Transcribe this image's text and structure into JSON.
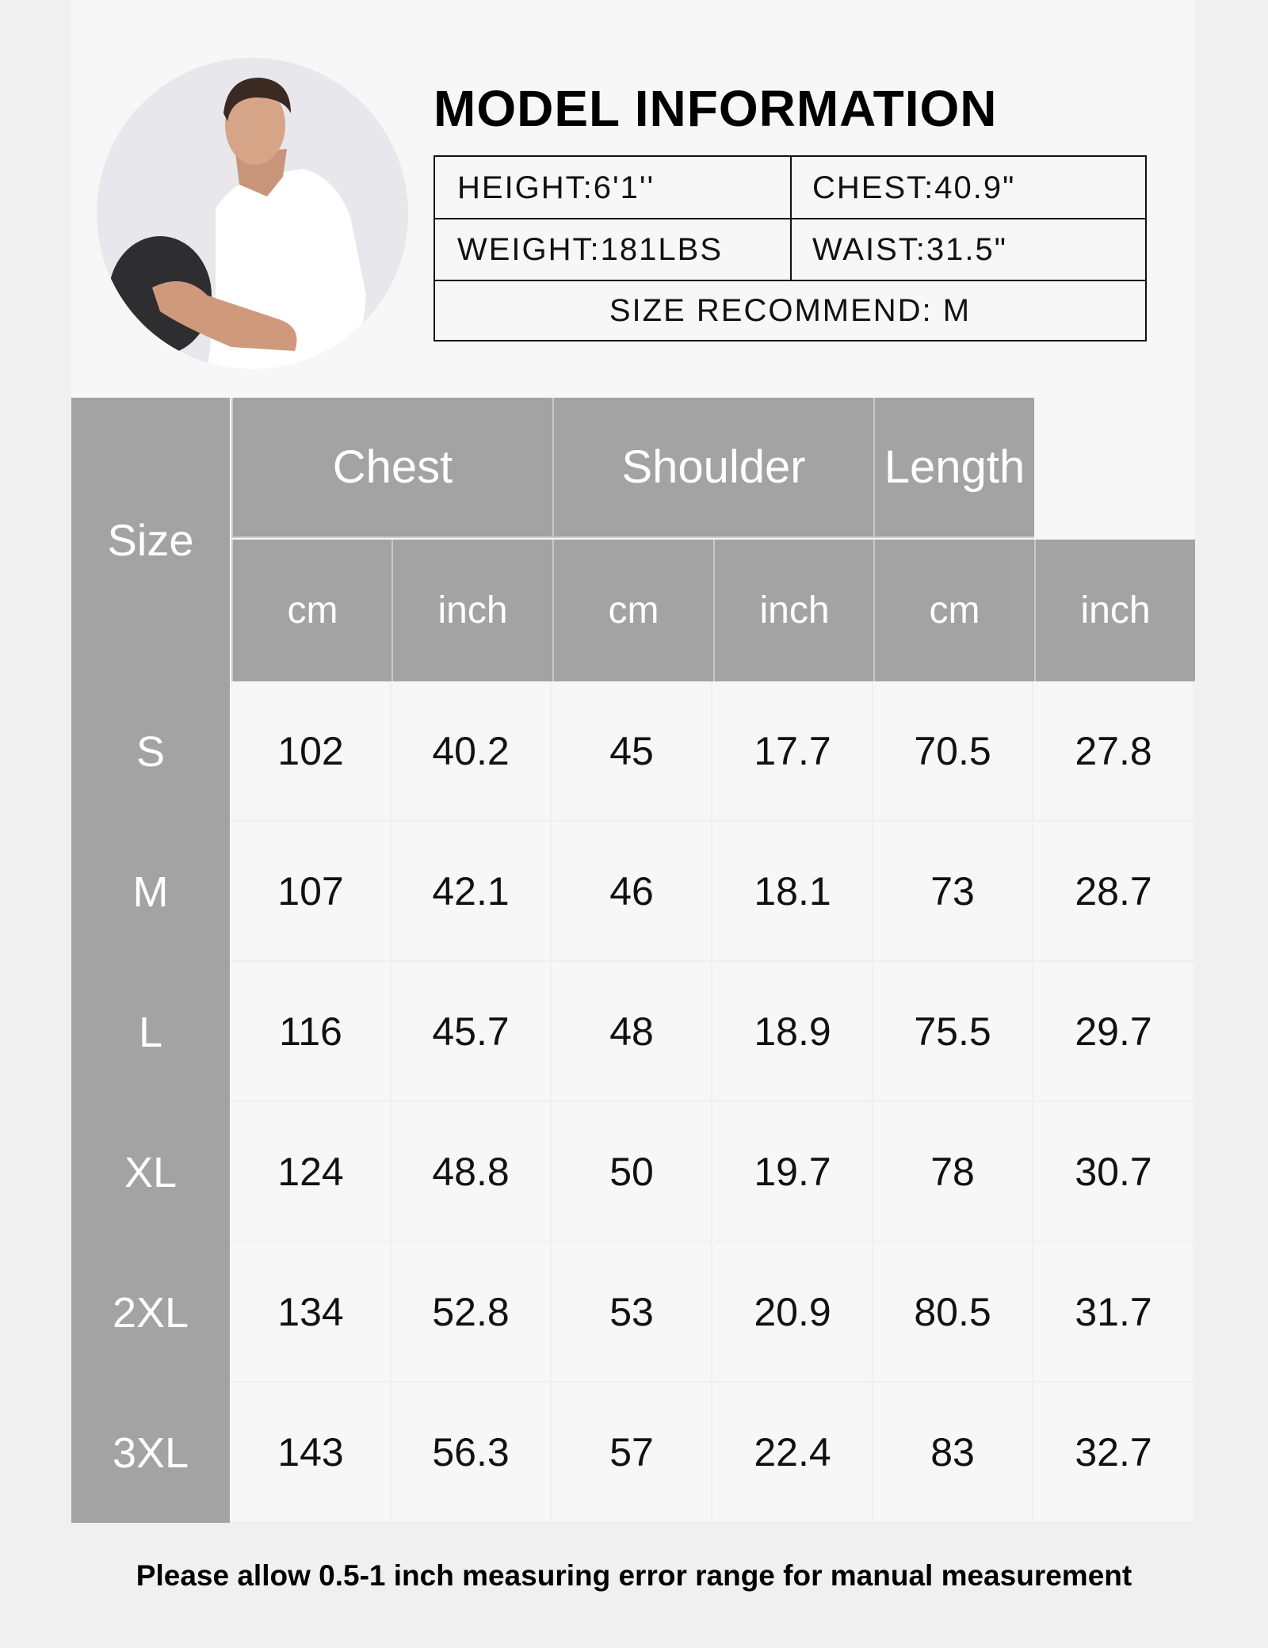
{
  "model_info": {
    "title": "MODEL INFORMATION",
    "height": "HEIGHT:6'1''",
    "chest": "CHEST:40.9\"",
    "weight": "WEIGHT:181LBS",
    "waist": "WAIST:31.5\"",
    "size_recommend": "SIZE RECOMMEND: M"
  },
  "size_table": {
    "size_header": "Size",
    "groups": [
      "Chest",
      "Shoulder",
      "Length"
    ],
    "units": [
      "cm",
      "inch",
      "cm",
      "inch",
      "cm",
      "inch"
    ],
    "rows": [
      {
        "size": "S",
        "values": [
          "102",
          "40.2",
          "45",
          "17.7",
          "70.5",
          "27.8"
        ]
      },
      {
        "size": "M",
        "values": [
          "107",
          "42.1",
          "46",
          "18.1",
          "73",
          "28.7"
        ]
      },
      {
        "size": "L",
        "values": [
          "116",
          "45.7",
          "48",
          "18.9",
          "75.5",
          "29.7"
        ]
      },
      {
        "size": "XL",
        "values": [
          "124",
          "48.8",
          "50",
          "19.7",
          "78",
          "30.7"
        ]
      },
      {
        "size": "2XL",
        "values": [
          "134",
          "52.8",
          "53",
          "20.9",
          "80.5",
          "31.7"
        ]
      },
      {
        "size": "3XL",
        "values": [
          "143",
          "56.3",
          "57",
          "22.4",
          "83",
          "32.7"
        ]
      }
    ]
  },
  "footnote": "Please allow 0.5-1 inch measuring error range for manual measurement",
  "colors": {
    "header_gray": "#a3a3a3",
    "panel": "#f7f7f7",
    "background": "#f0f0f0"
  }
}
